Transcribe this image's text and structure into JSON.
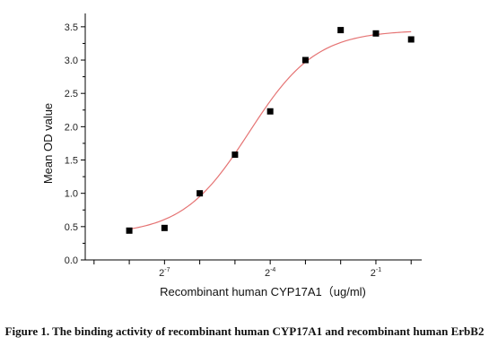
{
  "chart_data": {
    "type": "scatter",
    "title": "",
    "xlabel": "Recombinant human CYP17A1（ug/ml)",
    "ylabel": "Mean OD value",
    "x_scale": "log2",
    "xlim_log2": [
      -9.25,
      0.3
    ],
    "xticks": [
      {
        "base": "2",
        "exponent": "-7",
        "log2": -7
      },
      {
        "base": "2",
        "exponent": "-4",
        "log2": -4
      },
      {
        "base": "2",
        "exponent": "-1",
        "log2": -1
      }
    ],
    "ylim": [
      0,
      3.7
    ],
    "yticks": [
      "0.0",
      "0.5",
      "1.0",
      "1.5",
      "2.0",
      "2.5",
      "3.0",
      "3.5"
    ],
    "grid": false,
    "series": [
      {
        "marker": "square",
        "marker_color": "#000000",
        "x_log2": [
          -8,
          -7,
          -6,
          -5,
          -4,
          -3,
          -2,
          -1,
          0
        ],
        "y": [
          0.44,
          0.48,
          1.0,
          1.58,
          2.23,
          3.0,
          3.45,
          3.4,
          3.31
        ]
      }
    ],
    "fit_curve": {
      "color": "#e57373",
      "model": "4PL",
      "bottom": 0.38,
      "top": 3.45,
      "ec50_log2": -4.6,
      "slope_per_log2": 0.95
    }
  },
  "caption": "Figure 1. The binding activity of recombinant human CYP17A1 and recombinant human ErbB2"
}
